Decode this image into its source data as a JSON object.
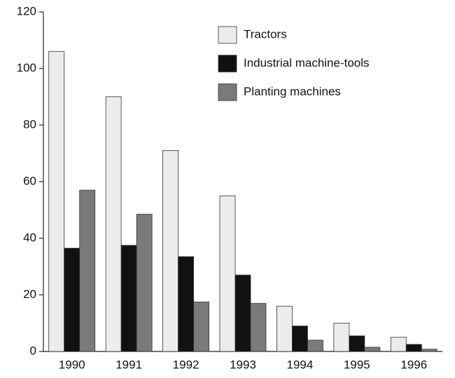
{
  "chart_data": {
    "type": "bar",
    "categories": [
      "1990",
      "1991",
      "1992",
      "1993",
      "1994",
      "1995",
      "1996"
    ],
    "series": [
      {
        "name": "Tractors",
        "color": "#ececec",
        "values": [
          106,
          90,
          71,
          55,
          16,
          10,
          5
        ]
      },
      {
        "name": "Industrial machine-tools",
        "color": "#111111",
        "values": [
          36.5,
          37.5,
          33.5,
          27,
          9,
          5.5,
          2.5
        ]
      },
      {
        "name": "Planting machines",
        "color": "#7a7a7a",
        "values": [
          57,
          48.5,
          17.5,
          17,
          4,
          1.5,
          0.8
        ]
      }
    ],
    "ylim": [
      0,
      120
    ],
    "yticks": [
      0,
      20,
      40,
      60,
      80,
      100,
      120
    ],
    "grid": false,
    "legend": "upper right"
  }
}
